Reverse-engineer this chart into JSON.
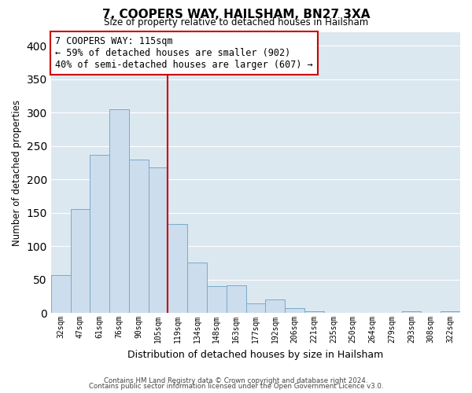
{
  "title": "7, COOPERS WAY, HAILSHAM, BN27 3XA",
  "subtitle": "Size of property relative to detached houses in Hailsham",
  "xlabel": "Distribution of detached houses by size in Hailsham",
  "ylabel": "Number of detached properties",
  "bar_labels": [
    "32sqm",
    "47sqm",
    "61sqm",
    "76sqm",
    "90sqm",
    "105sqm",
    "119sqm",
    "134sqm",
    "148sqm",
    "163sqm",
    "177sqm",
    "192sqm",
    "206sqm",
    "221sqm",
    "235sqm",
    "250sqm",
    "264sqm",
    "279sqm",
    "293sqm",
    "308sqm",
    "322sqm"
  ],
  "bar_values": [
    57,
    155,
    236,
    305,
    230,
    218,
    133,
    76,
    40,
    41,
    14,
    20,
    7,
    3,
    0,
    0,
    0,
    0,
    3,
    0,
    3
  ],
  "bar_color": "#ccdded",
  "bar_edge_color": "#7aaac8",
  "vline_x": 6,
  "vline_color": "#cc0000",
  "ylim": [
    0,
    420
  ],
  "yticks": [
    0,
    50,
    100,
    150,
    200,
    250,
    300,
    350,
    400
  ],
  "annotation_title": "7 COOPERS WAY: 115sqm",
  "annotation_line1": "← 59% of detached houses are smaller (902)",
  "annotation_line2": "40% of semi-detached houses are larger (607) →",
  "annotation_box_color": "#ffffff",
  "annotation_box_edge": "#cc0000",
  "footer_line1": "Contains HM Land Registry data © Crown copyright and database right 2024.",
  "footer_line2": "Contains public sector information licensed under the Open Government Licence v3.0.",
  "background_color": "#ffffff",
  "grid_color": "#dce8f0"
}
